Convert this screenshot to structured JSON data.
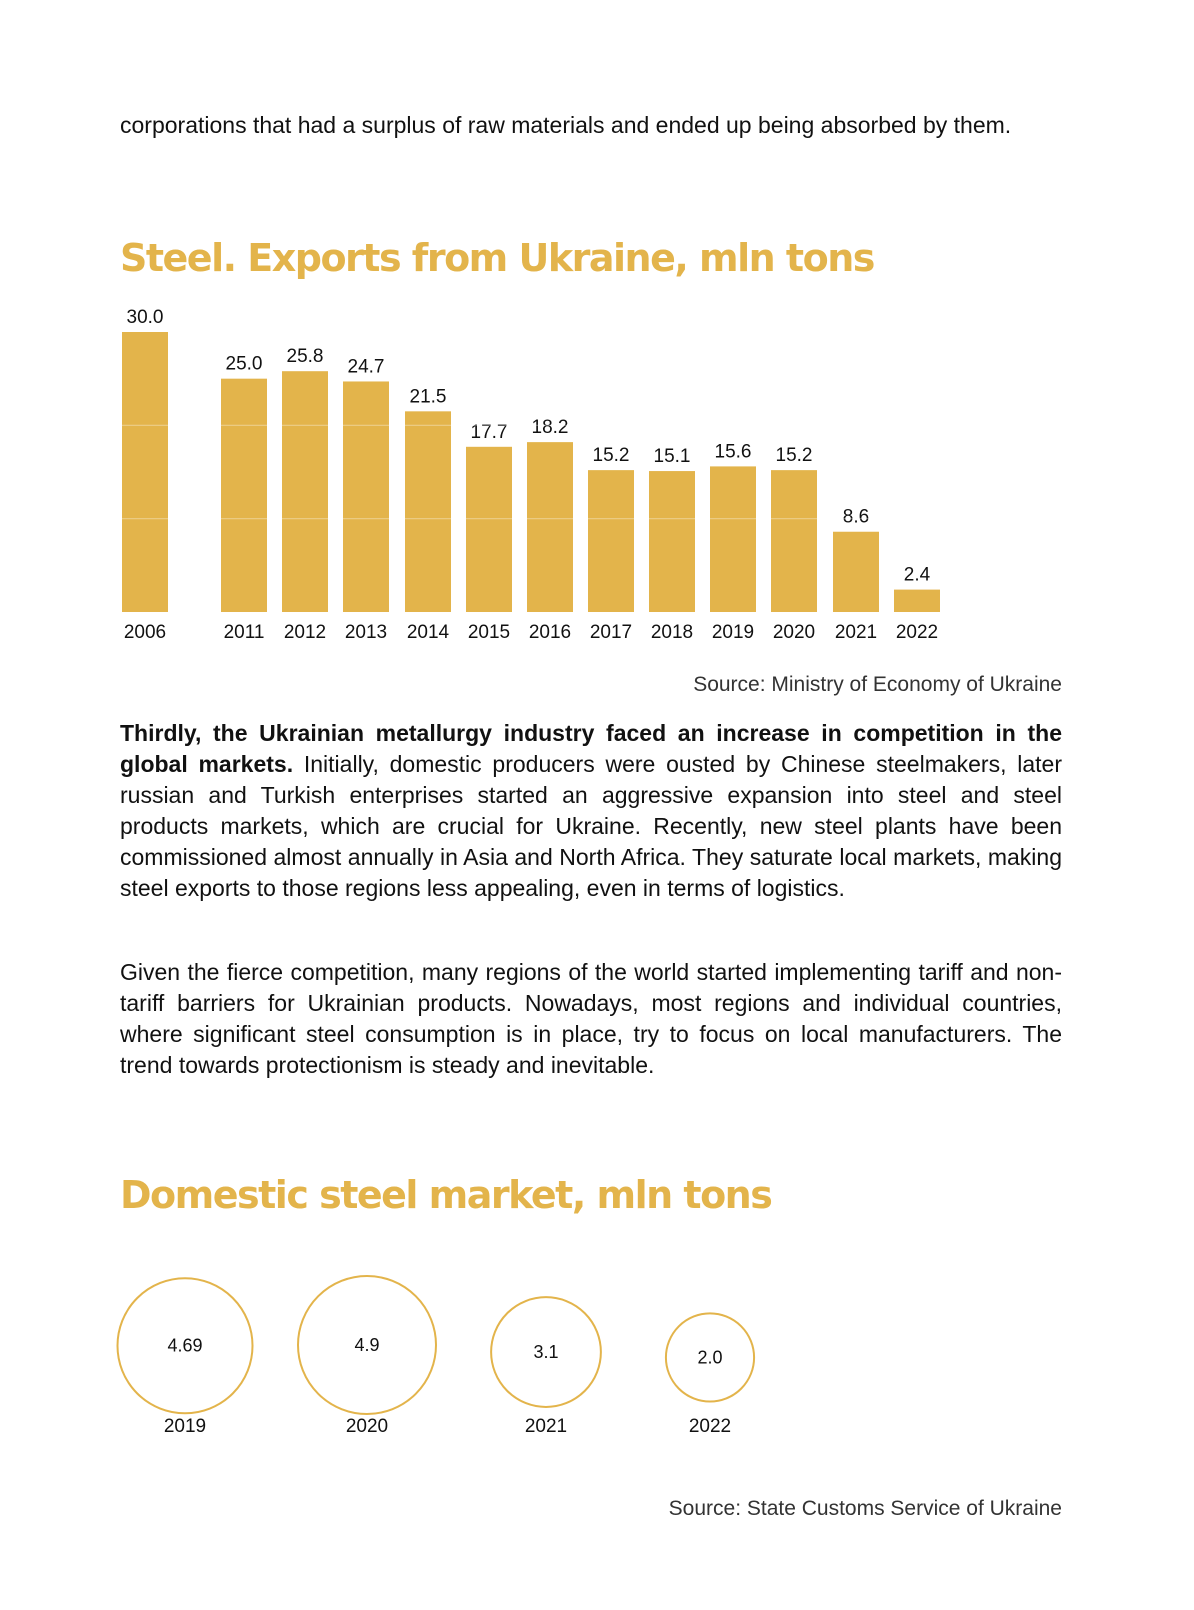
{
  "intro_text": "corporations that had a surplus of raw materials and ended up being absorbed by them.",
  "colors": {
    "accent": "#e3b44b",
    "text": "#111111"
  },
  "chart_data": [
    {
      "type": "bar",
      "title": "Steel. Exports from Ukraine, mln tons",
      "categories": [
        "2006",
        "2011",
        "2012",
        "2013",
        "2014",
        "2015",
        "2016",
        "2017",
        "2018",
        "2019",
        "2020",
        "2021",
        "2022"
      ],
      "values": [
        30.0,
        25.0,
        25.8,
        24.7,
        21.5,
        17.7,
        18.2,
        15.2,
        15.1,
        15.6,
        15.2,
        8.6,
        2.4
      ],
      "value_labels": [
        "30.0",
        "25.0",
        "25.8",
        "24.7",
        "21.5",
        "17.7",
        "18.2",
        "15.2",
        "15.1",
        "15.6",
        "15.2",
        "8.6",
        "2.4"
      ],
      "ylim": [
        0,
        30
      ],
      "grid": true,
      "source": "Source: Ministry of Economy of Ukraine"
    },
    {
      "type": "bubble",
      "title": "Domestic steel market, mln tons",
      "categories": [
        "2019",
        "2020",
        "2021",
        "2022"
      ],
      "values": [
        4.69,
        4.9,
        3.1,
        2.0
      ],
      "value_labels": [
        "4.69",
        "4.9",
        "3.1",
        "2.0"
      ],
      "source": "Source: State Customs Service of Ukraine"
    }
  ],
  "paragraph1": {
    "bold": "Thirdly, the Ukrainian metallurgy industry faced an increase in competition in the global markets.",
    "rest": " Initially, domestic producers were ousted by Chinese steelmakers, later russian and Turkish enterprises started an aggressive expansion into steel and steel products markets, which are crucial for Ukraine. Recently, new steel plants have been commissioned almost annually in Asia and North Africa. They saturate local markets, making steel exports to those regions less appealing, even in terms of logistics."
  },
  "paragraph2": "Given the fierce competition, many regions of the world started implementing tariff and non-tariff barriers for Ukrainian products. Nowadays, most regions and individual countries, where significant steel consumption is in place, try to focus on local manufacturers. The trend towards protectionism is steady and inevitable."
}
